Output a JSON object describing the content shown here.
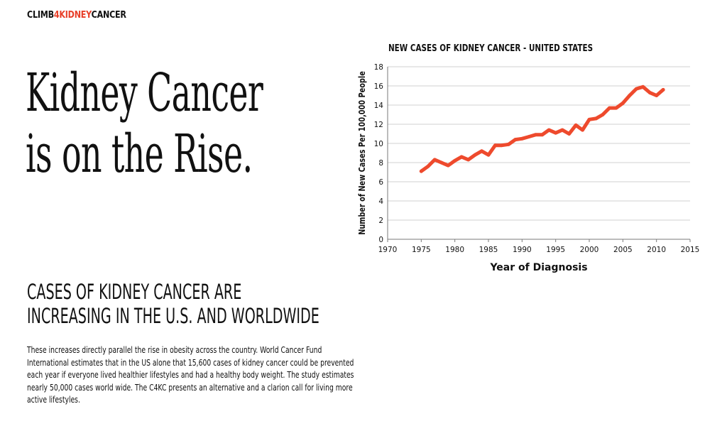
{
  "brand": {
    "part1": "CLIMB",
    "part2": "4KIDNEY",
    "part3": "CANCER",
    "accent_color": "#e8402a"
  },
  "headline": {
    "line1": "Kidney Cancer",
    "line2": "is on the Rise."
  },
  "subheading": {
    "line1": "CASES OF KIDNEY CANCER ARE",
    "line2": "INCREASING IN THE U.S. AND WORLDWIDE"
  },
  "body": {
    "paragraph": "These increases directly parallel the rise in obesity across the country.  World Cancer Fund International estimates that in the US alone that 15,600 cases of kidney cancer could be prevented each year if everyone lived healthier lifestyles and had a healthy body weight.  The study estimates nearly 50,000 cases world wide.  The C4KC presents an alternative and a clarion call for living more active lifestyles."
  },
  "chart_data": {
    "type": "line",
    "title": "NEW CASES OF KIDNEY CANCER - UNITED STATES",
    "xlabel": "Year of Diagnosis",
    "ylabel": "Number of New Cases Per 100,000 People",
    "xlim": [
      1970,
      2015
    ],
    "ylim": [
      0,
      18
    ],
    "xticks": [
      1970,
      1975,
      1980,
      1985,
      1990,
      1995,
      2000,
      2005,
      2010,
      2015
    ],
    "yticks": [
      0,
      2,
      4,
      6,
      8,
      10,
      12,
      14,
      16,
      18
    ],
    "grid": "horizontal",
    "line_color": "#ee4a2d",
    "series": [
      {
        "name": "New cases per 100,000",
        "x": [
          1975,
          1976,
          1977,
          1978,
          1979,
          1980,
          1981,
          1982,
          1983,
          1984,
          1985,
          1986,
          1987,
          1988,
          1989,
          1990,
          1991,
          1992,
          1993,
          1994,
          1995,
          1996,
          1997,
          1998,
          1999,
          2000,
          2001,
          2002,
          2003,
          2004,
          2005,
          2006,
          2007,
          2008,
          2009,
          2010,
          2011
        ],
        "y": [
          7.1,
          7.6,
          8.3,
          8.0,
          7.7,
          8.2,
          8.6,
          8.3,
          8.8,
          9.2,
          8.8,
          9.8,
          9.8,
          9.9,
          10.4,
          10.5,
          10.7,
          10.9,
          10.9,
          11.4,
          11.1,
          11.4,
          11.0,
          11.9,
          11.4,
          12.5,
          12.6,
          13.0,
          13.7,
          13.7,
          14.2,
          15.0,
          15.7,
          15.9,
          15.3,
          15.0,
          15.6
        ]
      }
    ]
  }
}
